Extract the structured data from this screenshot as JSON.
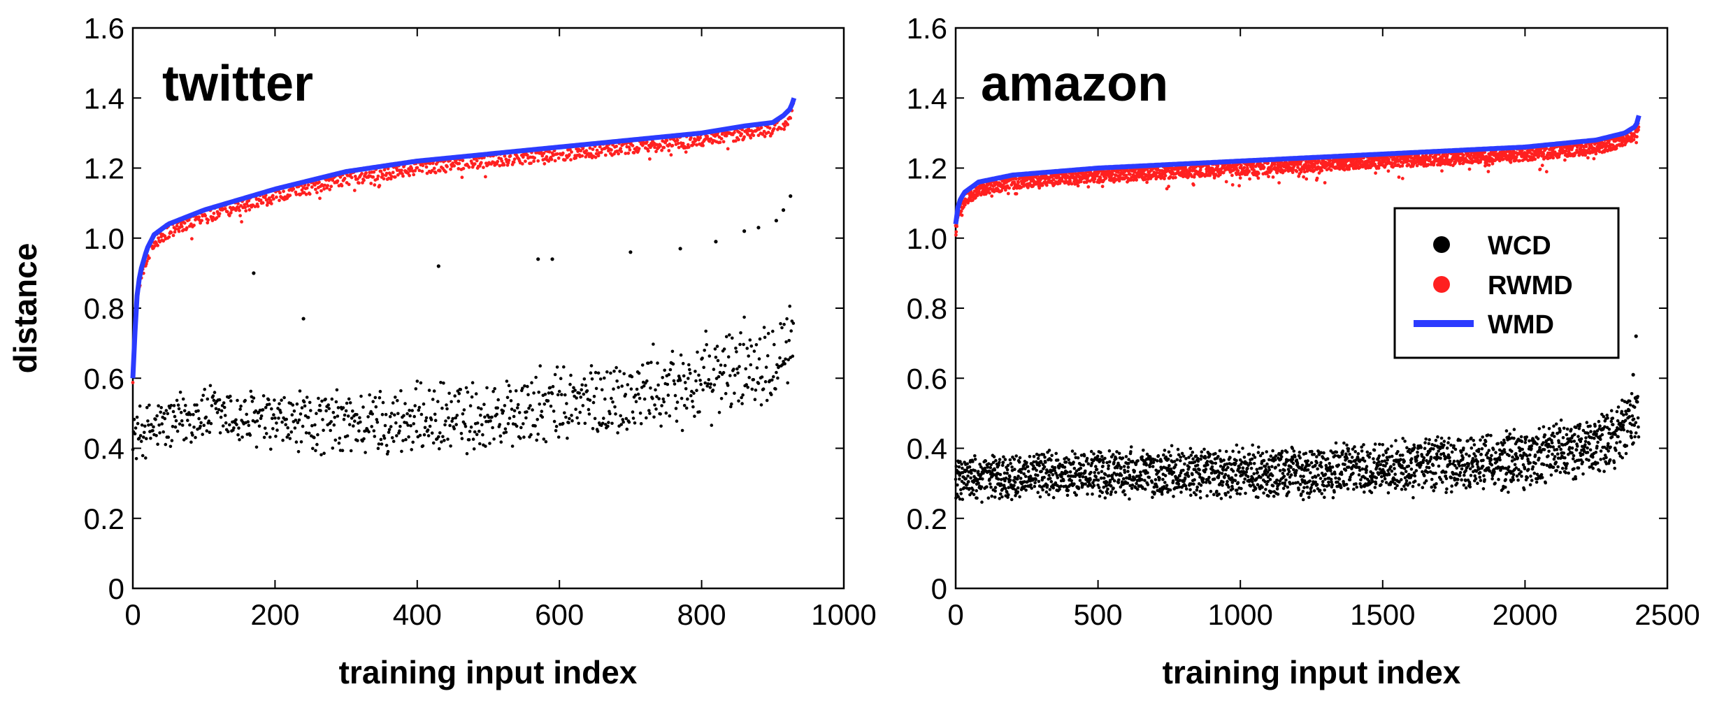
{
  "chart_data": [
    {
      "type": "scatter",
      "title": "twitter",
      "xlabel": "training input index",
      "ylabel": "distance",
      "xlim": [
        0,
        1000
      ],
      "ylim": [
        0,
        1.6
      ],
      "xticks": [
        "0",
        "200",
        "400",
        "600",
        "800",
        "1000"
      ],
      "yticks": [
        "0",
        "0.2",
        "0.4",
        "0.6",
        "0.8",
        "1.0",
        "1.2",
        "1.4",
        "1.6"
      ],
      "n_points": 930,
      "series": [
        {
          "name": "WMD",
          "kind": "line",
          "color": "#2b3bff",
          "x": [
            0,
            5,
            10,
            20,
            30,
            50,
            100,
            150,
            200,
            300,
            400,
            500,
            600,
            700,
            800,
            860,
            900,
            915,
            925,
            930
          ],
          "y": [
            0.6,
            0.82,
            0.9,
            0.97,
            1.01,
            1.04,
            1.08,
            1.11,
            1.14,
            1.19,
            1.22,
            1.24,
            1.26,
            1.28,
            1.3,
            1.32,
            1.33,
            1.35,
            1.37,
            1.4
          ]
        },
        {
          "name": "RWMD",
          "kind": "points",
          "color": "#ff2020",
          "typical_offset_below_wmd": [
            0.0,
            0.04
          ]
        },
        {
          "name": "WCD",
          "kind": "points",
          "color": "#000000",
          "trend_x": [
            0,
            100,
            200,
            300,
            400,
            500,
            600,
            700,
            800,
            900,
            930
          ],
          "trend_y": [
            0.44,
            0.5,
            0.47,
            0.47,
            0.48,
            0.49,
            0.52,
            0.55,
            0.59,
            0.67,
            0.72
          ],
          "outliers": [
            {
              "x": 170,
              "y": 0.9
            },
            {
              "x": 240,
              "y": 0.77
            },
            {
              "x": 430,
              "y": 0.92
            },
            {
              "x": 570,
              "y": 0.94
            },
            {
              "x": 590,
              "y": 0.94
            },
            {
              "x": 700,
              "y": 0.96
            },
            {
              "x": 770,
              "y": 0.97
            },
            {
              "x": 820,
              "y": 0.99
            },
            {
              "x": 860,
              "y": 1.02
            },
            {
              "x": 880,
              "y": 1.03
            },
            {
              "x": 905,
              "y": 1.05
            },
            {
              "x": 915,
              "y": 1.08
            },
            {
              "x": 925,
              "y": 1.12
            }
          ]
        }
      ]
    },
    {
      "type": "scatter",
      "title": "amazon",
      "xlabel": "training input index",
      "ylabel": "",
      "xlim": [
        0,
        2500
      ],
      "ylim": [
        0,
        1.6
      ],
      "xticks": [
        "0",
        "500",
        "1000",
        "1500",
        "2000",
        "2500"
      ],
      "yticks": [
        "0",
        "0.2",
        "0.4",
        "0.6",
        "0.8",
        "1.0",
        "1.2",
        "1.4",
        "1.6"
      ],
      "n_points": 2400,
      "series": [
        {
          "name": "WMD",
          "kind": "line",
          "color": "#2b3bff",
          "x": [
            0,
            10,
            30,
            80,
            200,
            500,
            1000,
            1500,
            2000,
            2250,
            2350,
            2390,
            2400
          ],
          "y": [
            1.04,
            1.1,
            1.13,
            1.16,
            1.18,
            1.2,
            1.22,
            1.24,
            1.26,
            1.28,
            1.3,
            1.32,
            1.35
          ]
        },
        {
          "name": "RWMD",
          "kind": "points",
          "color": "#ff2020",
          "typical_offset_below_wmd": [
            0.0,
            0.04
          ]
        },
        {
          "name": "WCD",
          "kind": "points",
          "color": "#000000",
          "trend_x": [
            0,
            500,
            1000,
            1500,
            2000,
            2300,
            2400
          ],
          "trend_y": [
            0.31,
            0.33,
            0.33,
            0.34,
            0.37,
            0.42,
            0.5
          ],
          "outliers": [
            {
              "x": 2390,
              "y": 0.72
            },
            {
              "x": 2380,
              "y": 0.61
            }
          ]
        }
      ]
    }
  ],
  "legend": {
    "placement": "right panel, middle-right",
    "items": [
      {
        "label": "WCD",
        "marker": "dot",
        "color": "#000000"
      },
      {
        "label": "RWMD",
        "marker": "dot",
        "color": "#ff2020"
      },
      {
        "label": "WMD",
        "marker": "line",
        "color": "#2b3bff"
      }
    ]
  }
}
